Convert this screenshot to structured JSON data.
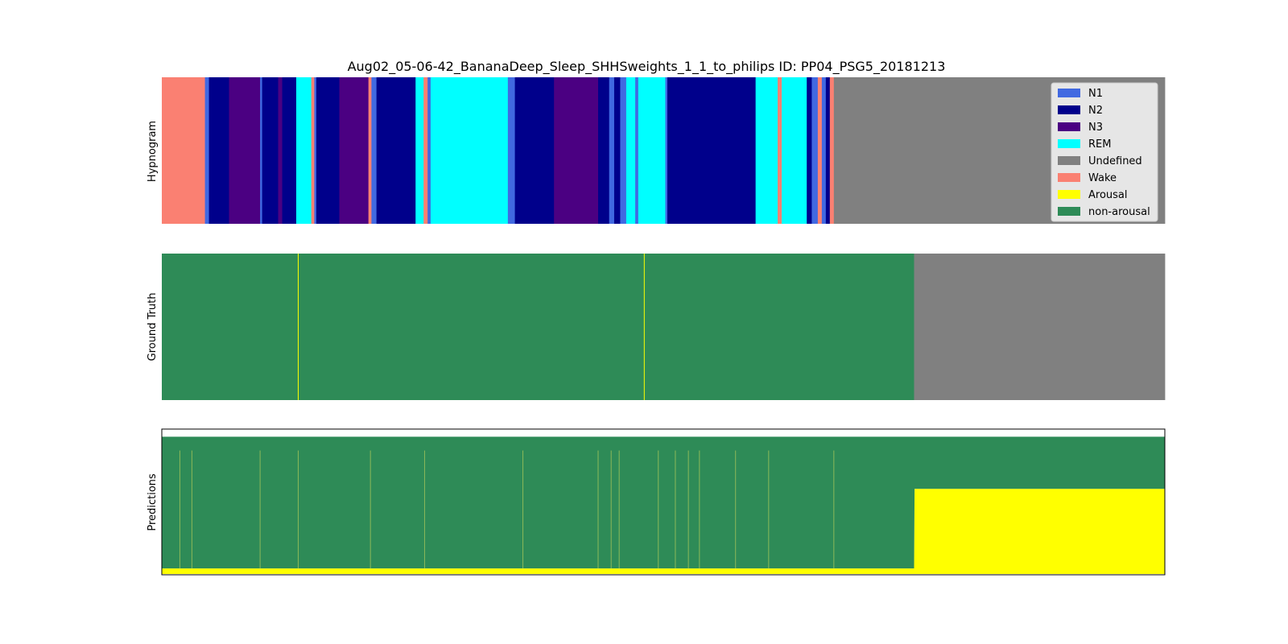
{
  "title": "Aug02_05-06-42_BananaDeep_Sleep_SHHSweights_1_1_to_philips ID: PP04_PSG5_20181213",
  "colors": {
    "N1": "#4169e1",
    "N2": "#00008b",
    "N3": "#4b0082",
    "REM": "#00ffff",
    "Undefined": "#808080",
    "Wake": "#fa8072",
    "Arousal": "#ffff00",
    "non-arousal": "#2e8b57"
  },
  "chart_data": [
    {
      "type": "area",
      "panel": "hypnogram",
      "ylabel": "Hypnogram",
      "x_range": [
        0,
        100
      ],
      "legend_position": "top-right",
      "legend": [
        "N1",
        "N2",
        "N3",
        "REM",
        "Undefined",
        "Wake",
        "Arousal",
        "non-arousal"
      ],
      "segments": [
        {
          "start": 0.0,
          "end": 4.3,
          "stage": "Wake"
        },
        {
          "start": 4.3,
          "end": 4.7,
          "stage": "N1"
        },
        {
          "start": 4.7,
          "end": 6.7,
          "stage": "N2"
        },
        {
          "start": 6.7,
          "end": 7.1,
          "stage": "N3"
        },
        {
          "start": 7.1,
          "end": 9.8,
          "stage": "N3"
        },
        {
          "start": 9.8,
          "end": 10.0,
          "stage": "N1"
        },
        {
          "start": 10.0,
          "end": 11.6,
          "stage": "N2"
        },
        {
          "start": 11.6,
          "end": 12.0,
          "stage": "N3"
        },
        {
          "start": 12.0,
          "end": 13.4,
          "stage": "N2"
        },
        {
          "start": 13.4,
          "end": 14.9,
          "stage": "REM"
        },
        {
          "start": 14.9,
          "end": 15.2,
          "stage": "Wake"
        },
        {
          "start": 15.2,
          "end": 15.4,
          "stage": "N1"
        },
        {
          "start": 15.4,
          "end": 17.7,
          "stage": "N2"
        },
        {
          "start": 17.7,
          "end": 20.6,
          "stage": "N3"
        },
        {
          "start": 20.6,
          "end": 20.9,
          "stage": "Wake"
        },
        {
          "start": 20.9,
          "end": 21.4,
          "stage": "N1"
        },
        {
          "start": 21.4,
          "end": 25.3,
          "stage": "N2"
        },
        {
          "start": 25.3,
          "end": 26.1,
          "stage": "REM"
        },
        {
          "start": 26.1,
          "end": 26.5,
          "stage": "Wake"
        },
        {
          "start": 26.5,
          "end": 26.8,
          "stage": "N1"
        },
        {
          "start": 26.8,
          "end": 34.5,
          "stage": "REM"
        },
        {
          "start": 34.5,
          "end": 35.2,
          "stage": "N1"
        },
        {
          "start": 35.2,
          "end": 39.1,
          "stage": "N2"
        },
        {
          "start": 39.1,
          "end": 43.5,
          "stage": "N3"
        },
        {
          "start": 43.5,
          "end": 44.6,
          "stage": "N2"
        },
        {
          "start": 44.6,
          "end": 45.1,
          "stage": "N1"
        },
        {
          "start": 45.1,
          "end": 45.7,
          "stage": "N2"
        },
        {
          "start": 45.7,
          "end": 46.3,
          "stage": "N1"
        },
        {
          "start": 46.3,
          "end": 47.2,
          "stage": "REM"
        },
        {
          "start": 47.2,
          "end": 47.5,
          "stage": "N1"
        },
        {
          "start": 47.5,
          "end": 50.2,
          "stage": "REM"
        },
        {
          "start": 50.2,
          "end": 50.4,
          "stage": "N1"
        },
        {
          "start": 50.4,
          "end": 59.2,
          "stage": "N2"
        },
        {
          "start": 59.2,
          "end": 61.4,
          "stage": "REM"
        },
        {
          "start": 61.4,
          "end": 61.8,
          "stage": "Wake"
        },
        {
          "start": 61.8,
          "end": 64.3,
          "stage": "REM"
        },
        {
          "start": 64.3,
          "end": 64.8,
          "stage": "N2"
        },
        {
          "start": 64.8,
          "end": 65.4,
          "stage": "N1"
        },
        {
          "start": 65.4,
          "end": 65.8,
          "stage": "Wake"
        },
        {
          "start": 65.8,
          "end": 66.2,
          "stage": "N1"
        },
        {
          "start": 66.2,
          "end": 66.6,
          "stage": "N2"
        },
        {
          "start": 66.6,
          "end": 67.0,
          "stage": "Wake"
        },
        {
          "start": 67.0,
          "end": 100.0,
          "stage": "Undefined"
        }
      ]
    },
    {
      "type": "area",
      "panel": "ground_truth",
      "ylabel": "Ground Truth",
      "x_range": [
        0,
        100
      ],
      "segments": [
        {
          "start": 0.0,
          "end": 75.0,
          "label": "non-arousal"
        },
        {
          "start": 75.0,
          "end": 100.0,
          "label": "Undefined"
        }
      ],
      "arousal_events": [
        13.6,
        48.1
      ]
    },
    {
      "type": "area",
      "panel": "predictions",
      "ylabel": "Predictions",
      "x_range": [
        0,
        100
      ],
      "ylim": [
        0,
        1.05
      ],
      "series": [
        {
          "name": "Arousal",
          "x": [
            0,
            75,
            75.05,
            100
          ],
          "values": [
            0.04,
            0.04,
            0.62,
            0.62
          ]
        },
        {
          "name": "non-arousal",
          "x": [
            0,
            75,
            75.05,
            100
          ],
          "values": [
            0.96,
            0.96,
            0.38,
            0.38
          ]
        }
      ],
      "arousal_spikes": [
        1.8,
        3.0,
        9.8,
        13.6,
        20.8,
        26.2,
        36.0,
        43.5,
        44.8,
        45.6,
        49.5,
        51.2,
        52.5,
        53.6,
        57.2,
        60.5,
        67.0
      ]
    }
  ]
}
